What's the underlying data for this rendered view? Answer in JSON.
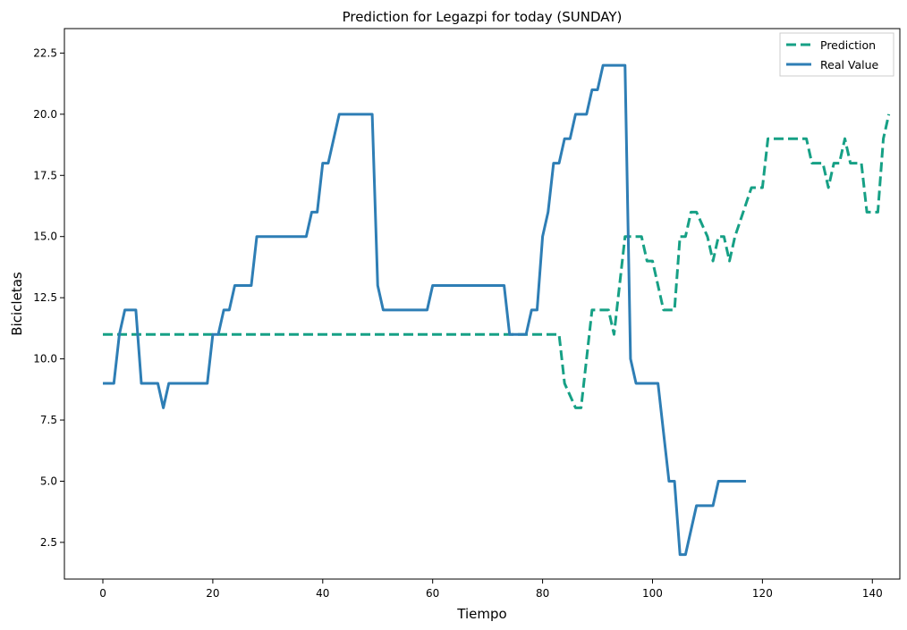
{
  "chart_data": {
    "type": "line",
    "title": "Prediction for Legazpi for today (SUNDAY)",
    "xlabel": "Tiempo",
    "ylabel": "Bicicletas",
    "xlim": [
      -7,
      145
    ],
    "ylim": [
      1.0,
      23.5
    ],
    "xticks": [
      0,
      20,
      40,
      60,
      80,
      100,
      120,
      140
    ],
    "yticks": [
      2.5,
      5.0,
      7.5,
      10.0,
      12.5,
      15.0,
      17.5,
      20.0,
      22.5
    ],
    "ytick_labels": [
      "2.5",
      "5.0",
      "7.5",
      "10.0",
      "12.5",
      "15.0",
      "17.5",
      "20.0",
      "22.5"
    ],
    "grid": false,
    "legend_position": "top-right",
    "series": [
      {
        "name": "Prediction",
        "style": "dashed",
        "color": "#16a085",
        "points": [
          [
            0,
            11
          ],
          [
            83,
            11
          ],
          [
            84,
            9
          ],
          [
            86,
            8
          ],
          [
            87,
            8
          ],
          [
            89,
            12
          ],
          [
            92,
            12
          ],
          [
            93,
            11
          ],
          [
            95,
            15
          ],
          [
            98,
            15
          ],
          [
            99,
            14
          ],
          [
            100,
            14
          ],
          [
            102,
            12
          ],
          [
            104,
            12
          ],
          [
            105,
            15
          ],
          [
            106,
            15
          ],
          [
            107,
            16
          ],
          [
            108,
            16
          ],
          [
            110,
            15
          ],
          [
            111,
            14
          ],
          [
            112,
            15
          ],
          [
            113,
            15
          ],
          [
            114,
            14
          ],
          [
            115,
            15
          ],
          [
            118,
            17
          ],
          [
            120,
            17
          ],
          [
            121,
            19
          ],
          [
            128,
            19
          ],
          [
            129,
            18
          ],
          [
            131,
            18
          ],
          [
            132,
            17
          ],
          [
            133,
            18
          ],
          [
            134,
            18
          ],
          [
            135,
            19
          ],
          [
            136,
            18
          ],
          [
            138,
            18
          ],
          [
            139,
            16
          ],
          [
            141,
            16
          ],
          [
            142,
            19
          ],
          [
            143,
            20
          ]
        ]
      },
      {
        "name": "Real Value",
        "style": "solid",
        "color": "#2e7eb5",
        "points": [
          [
            0,
            9
          ],
          [
            2,
            9
          ],
          [
            3,
            11
          ],
          [
            4,
            12
          ],
          [
            6,
            12
          ],
          [
            7,
            9
          ],
          [
            10,
            9
          ],
          [
            11,
            8
          ],
          [
            12,
            9
          ],
          [
            19,
            9
          ],
          [
            20,
            11
          ],
          [
            21,
            11
          ],
          [
            22,
            12
          ],
          [
            23,
            12
          ],
          [
            24,
            13
          ],
          [
            27,
            13
          ],
          [
            28,
            15
          ],
          [
            37,
            15
          ],
          [
            38,
            16
          ],
          [
            39,
            16
          ],
          [
            40,
            18
          ],
          [
            41,
            18
          ],
          [
            43,
            20
          ],
          [
            49,
            20
          ],
          [
            50,
            13
          ],
          [
            51,
            12
          ],
          [
            59,
            12
          ],
          [
            60,
            13
          ],
          [
            73,
            13
          ],
          [
            74,
            11
          ],
          [
            77,
            11
          ],
          [
            78,
            12
          ],
          [
            79,
            12
          ],
          [
            80,
            15
          ],
          [
            81,
            16
          ],
          [
            82,
            18
          ],
          [
            83,
            18
          ],
          [
            84,
            19
          ],
          [
            85,
            19
          ],
          [
            86,
            20
          ],
          [
            88,
            20
          ],
          [
            89,
            21
          ],
          [
            90,
            21
          ],
          [
            91,
            22
          ],
          [
            95,
            22
          ],
          [
            96,
            10
          ],
          [
            97,
            9
          ],
          [
            101,
            9
          ],
          [
            103,
            5
          ],
          [
            104,
            5
          ],
          [
            105,
            2
          ],
          [
            106,
            2
          ],
          [
            108,
            4
          ],
          [
            111,
            4
          ],
          [
            112,
            5
          ],
          [
            117,
            5
          ]
        ]
      }
    ]
  }
}
